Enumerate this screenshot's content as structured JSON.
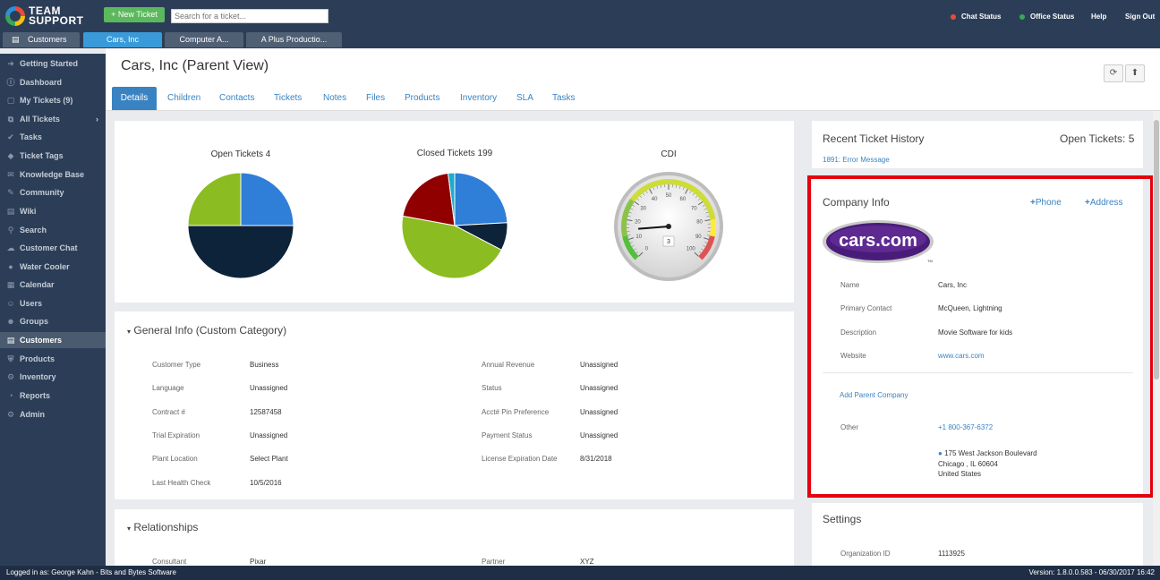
{
  "topbar": {
    "logo_line1": "TEAM",
    "logo_line2": "SUPPORT",
    "new_ticket": "+ New Ticket",
    "search_placeholder": "Search for a ticket...",
    "chat_status": "Chat Status",
    "office_status": "Office Status",
    "help": "Help",
    "sign_out": "Sign Out",
    "chat_status_color": "#e84c3d",
    "office_status_color": "#3aa757"
  },
  "open_tabs": [
    {
      "label": "Customers",
      "icon": "customers-icon"
    },
    {
      "label": "Cars, Inc"
    },
    {
      "label": "Computer A..."
    },
    {
      "label": "A Plus Productio..."
    }
  ],
  "sidebar": {
    "items": [
      {
        "label": "Getting Started",
        "icon": "arrow-right-icon"
      },
      {
        "label": "Dashboard",
        "icon": "dashboard-icon"
      },
      {
        "label": "My Tickets (9)",
        "icon": "ticket-icon"
      },
      {
        "label": "All Tickets",
        "icon": "tickets-icon"
      },
      {
        "label": "Tasks",
        "icon": "check-icon"
      },
      {
        "label": "Ticket Tags",
        "icon": "tag-icon"
      },
      {
        "label": "Knowledge Base",
        "icon": "knowledge-icon"
      },
      {
        "label": "Community",
        "icon": "community-icon"
      },
      {
        "label": "Wiki",
        "icon": "wiki-icon"
      },
      {
        "label": "Search",
        "icon": "search-icon"
      },
      {
        "label": "Customer Chat",
        "icon": "chat-icon"
      },
      {
        "label": "Water Cooler",
        "icon": "water-cooler-icon"
      },
      {
        "label": "Calendar",
        "icon": "calendar-icon"
      },
      {
        "label": "Users",
        "icon": "user-icon"
      },
      {
        "label": "Groups",
        "icon": "groups-icon"
      },
      {
        "label": "Customers",
        "icon": "customers-icon"
      },
      {
        "label": "Products",
        "icon": "products-icon"
      },
      {
        "label": "Inventory",
        "icon": "inventory-icon"
      },
      {
        "label": "Reports",
        "icon": "reports-icon"
      },
      {
        "label": "Admin",
        "icon": "gear-icon"
      }
    ]
  },
  "page": {
    "title": "Cars, Inc (Parent View)",
    "tabs": [
      "Details",
      "Children",
      "Contacts",
      "Tickets",
      "Notes",
      "Files",
      "Products",
      "Inventory",
      "SLA",
      "Tasks"
    ]
  },
  "charts": {
    "open": "Open Tickets 4",
    "closed": "Closed Tickets 199",
    "cdi": "CDI",
    "cdi_value": "3",
    "gauge_ticks": [
      "0",
      "10",
      "20",
      "30",
      "40",
      "50",
      "60",
      "70",
      "80",
      "90",
      "100"
    ]
  },
  "chart_data": [
    {
      "type": "pie",
      "title": "Open Tickets 4",
      "slices": [
        {
          "value": 1,
          "color": "#2f7ed8"
        },
        {
          "value": 2,
          "color": "#0d233a"
        },
        {
          "value": 1,
          "color": "#8bbc21"
        }
      ]
    },
    {
      "type": "pie",
      "title": "Closed Tickets 199",
      "slices": [
        {
          "value": 48,
          "color": "#2f7ed8"
        },
        {
          "value": 17,
          "color": "#0d233a"
        },
        {
          "value": 90,
          "color": "#8bbc21"
        },
        {
          "value": 40,
          "color": "#910000"
        },
        {
          "value": 4,
          "color": "#1aadce"
        }
      ]
    },
    {
      "type": "gauge",
      "title": "CDI",
      "value": 3,
      "range": [
        0,
        100
      ]
    }
  ],
  "general_info": {
    "title": "General Info (Custom Category)",
    "left": [
      {
        "label": "Customer Type",
        "value": "Business"
      },
      {
        "label": "Language",
        "value": "Unassigned"
      },
      {
        "label": "Contract #",
        "value": "12587458"
      },
      {
        "label": "Trial Expiration",
        "value": "Unassigned"
      },
      {
        "label": "Plant Location",
        "value": "Select Plant"
      },
      {
        "label": "Last Health Check",
        "value": "10/5/2016"
      }
    ],
    "right": [
      {
        "label": "Annual Revenue",
        "value": "Unassigned"
      },
      {
        "label": "Status",
        "value": "Unassigned"
      },
      {
        "label": "Acct# Pin Preference",
        "value": "Unassigned"
      },
      {
        "label": "Payment Status",
        "value": "Unassigned"
      },
      {
        "label": "License Expiration Date",
        "value": "8/31/2018"
      }
    ]
  },
  "relationships": {
    "title": "Relationships",
    "consultant_label": "Consultant",
    "consultant_value": "Pixar",
    "partner_label": "Partner",
    "partner_value": "XYZ"
  },
  "recent_history": {
    "title": "Recent Ticket History",
    "open_tickets": "Open Tickets: 5",
    "item": "1891: Error Message"
  },
  "company_info": {
    "title": "Company Info",
    "phone_btn": "Phone",
    "address_btn": "Address",
    "logo_text": "cars.com",
    "logo_tm": "TM",
    "fields": [
      {
        "label": "Name",
        "value": "Cars, Inc"
      },
      {
        "label": "Primary Contact",
        "value": "McQueen, Lightning"
      },
      {
        "label": "Description",
        "value": "Movie Software for kids"
      },
      {
        "label": "Website",
        "value": "www.cars.com"
      }
    ],
    "add_parent": "Add Parent Company",
    "other_label": "Other",
    "phone": "+1 800-367-6372",
    "address_line1": "175 West Jackson Boulevard",
    "address_line2": "Chicago , IL 60604",
    "address_line3": "United States"
  },
  "settings": {
    "title": "Settings",
    "org_label": "Organization ID",
    "org_value": "1113925"
  },
  "footer": {
    "logged_in": "Logged in as: George Kahn - Bits and Bytes Software",
    "version": "Version: 1.8.0.0.583 - 06/30/2017 16:42"
  }
}
